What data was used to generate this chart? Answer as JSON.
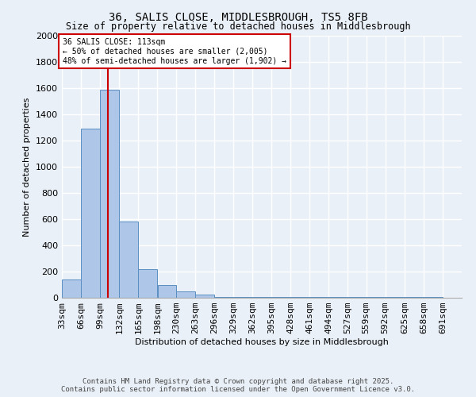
{
  "title1": "36, SALIS CLOSE, MIDDLESBROUGH, TS5 8FB",
  "title2": "Size of property relative to detached houses in Middlesbrough",
  "xlabel": "Distribution of detached houses by size in Middlesbrough",
  "ylabel": "Number of detached properties",
  "bins": [
    33,
    66,
    99,
    132,
    165,
    198,
    230,
    263,
    296,
    329,
    362,
    395,
    428,
    461,
    494,
    527,
    559,
    592,
    625,
    658,
    691
  ],
  "bin_labels": [
    "33sqm",
    "66sqm",
    "99sqm",
    "132sqm",
    "165sqm",
    "198sqm",
    "230sqm",
    "263sqm",
    "296sqm",
    "329sqm",
    "362sqm",
    "395sqm",
    "428sqm",
    "461sqm",
    "494sqm",
    "527sqm",
    "559sqm",
    "592sqm",
    "625sqm",
    "658sqm",
    "691sqm"
  ],
  "bar_heights": [
    140,
    1290,
    1590,
    580,
    220,
    100,
    50,
    25,
    5,
    5,
    5,
    5,
    5,
    5,
    5,
    5,
    5,
    5,
    5,
    5
  ],
  "bar_color": "#aec6e8",
  "bar_edge_color": "#5a8fc2",
  "ylim": [
    0,
    2000
  ],
  "yticks": [
    0,
    200,
    400,
    600,
    800,
    1000,
    1200,
    1400,
    1600,
    1800,
    2000
  ],
  "property_size": 113,
  "property_label": "36 SALIS CLOSE: 113sqm",
  "annotation_line1": "← 50% of detached houses are smaller (2,005)",
  "annotation_line2": "48% of semi-detached houses are larger (1,902) →",
  "vline_color": "#cc0000",
  "annotation_box_edge": "#cc0000",
  "bg_color": "#eaf0f8",
  "grid_color": "#ffffff",
  "footer1": "Contains HM Land Registry data © Crown copyright and database right 2025.",
  "footer2": "Contains public sector information licensed under the Open Government Licence v3.0."
}
